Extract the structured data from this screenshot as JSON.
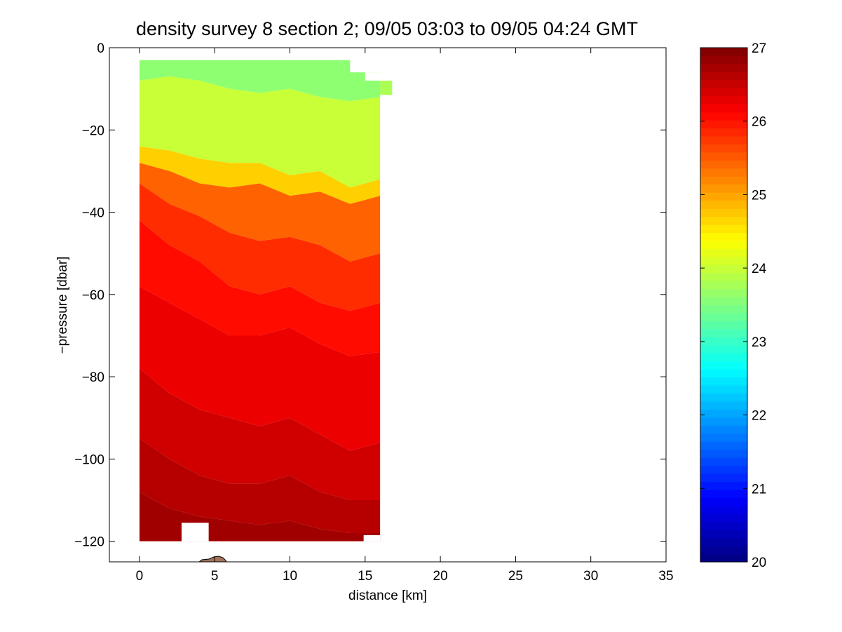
{
  "chart_data": {
    "type": "heatmap",
    "title": "density survey 8 section 2; 09/05 03:03 to 09/05 04:24 GMT",
    "xlabel": "distance [km]",
    "ylabel": "−pressure [dbar]",
    "xlim": [
      -2,
      35
    ],
    "ylim": [
      -125,
      0
    ],
    "xticks": [
      {
        "v": 0,
        "label": "0"
      },
      {
        "v": 5,
        "label": "5"
      },
      {
        "v": 10,
        "label": "10"
      },
      {
        "v": 15,
        "label": "15"
      },
      {
        "v": 20,
        "label": "20"
      },
      {
        "v": 25,
        "label": "25"
      },
      {
        "v": 30,
        "label": "30"
      },
      {
        "v": 35,
        "label": "35"
      }
    ],
    "yticks": [
      {
        "v": 0,
        "label": "0"
      },
      {
        "v": -20,
        "label": "−20"
      },
      {
        "v": -40,
        "label": "−40"
      },
      {
        "v": -60,
        "label": "−60"
      },
      {
        "v": -80,
        "label": "−80"
      },
      {
        "v": -100,
        "label": "−100"
      },
      {
        "v": -120,
        "label": "−120"
      }
    ],
    "colorbar": {
      "colormap": "jet",
      "range": [
        20,
        27
      ],
      "ticks": [
        {
          "v": 20,
          "label": "20"
        },
        {
          "v": 21,
          "label": "21"
        },
        {
          "v": 22,
          "label": "22"
        },
        {
          "v": 23,
          "label": "23"
        },
        {
          "v": 24,
          "label": "24"
        },
        {
          "v": 25,
          "label": "25"
        },
        {
          "v": 26,
          "label": "26"
        },
        {
          "v": 27,
          "label": "27"
        }
      ]
    },
    "grid": false,
    "section": {
      "distances_km": [
        0,
        2,
        4,
        6,
        8,
        10,
        12,
        14,
        16
      ],
      "isopycnals": [
        {
          "value": 23.4,
          "depth": [
            -3,
            -3,
            -3,
            -3,
            -3,
            -3,
            -3,
            -3,
            -3
          ]
        },
        {
          "value": 23.8,
          "depth": [
            -8,
            -7,
            -8,
            -10,
            -11,
            -10,
            -12,
            -13,
            -12
          ]
        },
        {
          "value": 24.2,
          "depth": [
            -24,
            -25,
            -27,
            -28,
            -28,
            -31,
            -30,
            -34,
            -32
          ]
        },
        {
          "value": 25.2,
          "depth": [
            -28,
            -30,
            -33,
            -34,
            -33,
            -36,
            -35,
            -38,
            -36
          ]
        },
        {
          "value": 25.7,
          "depth": [
            -33,
            -38,
            -41,
            -45,
            -47,
            -46,
            -48,
            -52,
            -50
          ]
        },
        {
          "value": 25.95,
          "depth": [
            -42,
            -48,
            -52,
            -58,
            -60,
            -58,
            -62,
            -64,
            -62
          ]
        },
        {
          "value": 26.15,
          "depth": [
            -58,
            -62,
            -66,
            -70,
            -70,
            -68,
            -72,
            -75,
            -74
          ]
        },
        {
          "value": 26.35,
          "depth": [
            -78,
            -84,
            -88,
            -90,
            -92,
            -90,
            -94,
            -98,
            -96
          ]
        },
        {
          "value": 26.55,
          "depth": [
            -95,
            -100,
            -104,
            -106,
            -106,
            -104,
            -108,
            -110,
            -110
          ]
        },
        {
          "value": 26.7,
          "depth": [
            -108,
            -112,
            -114,
            -115,
            -116,
            -115,
            -117,
            -118,
            -118
          ]
        },
        {
          "value": 26.85,
          "depth": [
            -120,
            -120,
            -120,
            -120,
            -120,
            -120,
            -120,
            -120,
            -120
          ]
        }
      ]
    }
  }
}
